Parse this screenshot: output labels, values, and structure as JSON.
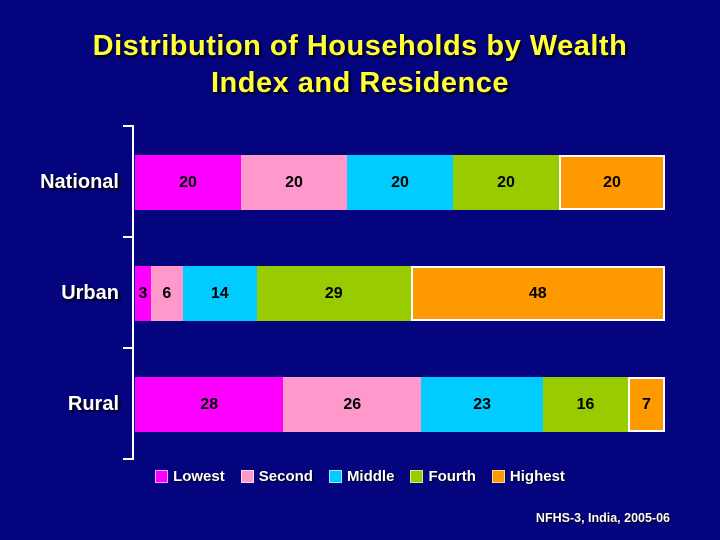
{
  "slide": {
    "title_line1": "Distribution of Households by Wealth",
    "title_line2": "Index and Residence",
    "source": "NFHS-3, India, 2005-06"
  },
  "colors": {
    "background": "#04047e",
    "title": "#ffff33",
    "axis": "#ffffff",
    "category_label": "#ffffff",
    "value_label": "#000000",
    "lowest": "#ff00ff",
    "second": "#ff99cc",
    "middle": "#00ccff",
    "fourth": "#99cc00",
    "highest": "#ff9900"
  },
  "chart_data": {
    "type": "bar",
    "orientation": "horizontal",
    "stacked": true,
    "title": "Distribution of Households by Wealth Index and Residence",
    "xlabel": "",
    "ylabel": "",
    "xlim": [
      0,
      100
    ],
    "grid": false,
    "legend_position": "bottom",
    "value_labels": true,
    "categories": [
      "National",
      "Urban",
      "Rural"
    ],
    "series": [
      {
        "name": "Lowest",
        "color_key": "lowest",
        "values": [
          20,
          3,
          28
        ]
      },
      {
        "name": "Second",
        "color_key": "second",
        "values": [
          20,
          6,
          26
        ]
      },
      {
        "name": "Middle",
        "color_key": "middle",
        "values": [
          20,
          14,
          23
        ]
      },
      {
        "name": "Fourth",
        "color_key": "fourth",
        "values": [
          20,
          29,
          16
        ]
      },
      {
        "name": "Highest",
        "color_key": "highest",
        "values": [
          20,
          48,
          7
        ]
      }
    ]
  }
}
